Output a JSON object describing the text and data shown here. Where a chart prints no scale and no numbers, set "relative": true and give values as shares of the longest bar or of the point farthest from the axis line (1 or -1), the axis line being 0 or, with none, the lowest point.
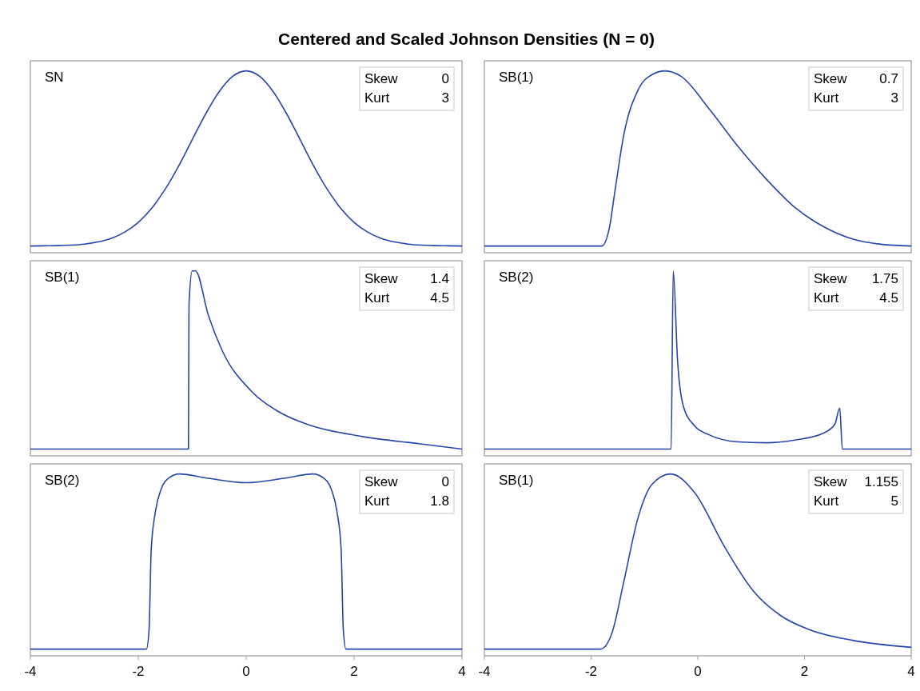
{
  "chart_data": [
    {
      "type": "line",
      "title": "Centered and Scaled Johnson Densities (N = 0)",
      "relative": true,
      "xlim": [
        -4,
        4
      ],
      "tick_labels": false,
      "annotations": [
        "SN",
        "Skew",
        "0",
        "Kurt",
        "3"
      ],
      "series": [
        {
          "color": "#2546a8",
          "x": [
            -4,
            -3.75,
            -3.5,
            -3.25,
            -3,
            -2.75,
            -2.5,
            -2.25,
            -2,
            -1.75,
            -1.5,
            -1.25,
            -1,
            -0.75,
            -0.5,
            -0.25,
            0,
            0.25,
            0.5,
            0.75,
            1,
            1.25,
            1.5,
            1.75,
            2,
            2.25,
            2.5,
            2.75,
            3,
            3.25,
            3.5,
            3.75,
            4
          ],
          "values": [
            0,
            0.001,
            0.002,
            0.005,
            0.011,
            0.023,
            0.044,
            0.08,
            0.135,
            0.216,
            0.325,
            0.458,
            0.607,
            0.755,
            0.882,
            0.969,
            1,
            0.969,
            0.882,
            0.755,
            0.607,
            0.458,
            0.325,
            0.216,
            0.135,
            0.08,
            0.044,
            0.023,
            0.011,
            0.005,
            0.002,
            0.001,
            0
          ]
        }
      ]
    },
    {
      "type": "line",
      "relative": true,
      "xlim": [
        -4,
        4
      ],
      "tick_labels": false,
      "annotations": [
        "SB(1)",
        "Skew",
        "0.7",
        "Kurt",
        "3"
      ],
      "series": [
        {
          "color": "#2546a8",
          "x": [
            -4,
            -1.8,
            -1.66,
            -1.55,
            -1.39,
            -1.12,
            -0.85,
            -0.61,
            -0.32,
            0.22,
            0.75,
            1.29,
            1.82,
            2.36,
            2.9,
            3.43,
            4
          ],
          "values": [
            0,
            0,
            0.1,
            0.32,
            0.63,
            0.89,
            0.98,
            1,
            0.97,
            0.78,
            0.57,
            0.38,
            0.22,
            0.11,
            0.04,
            0.01,
            0
          ]
        }
      ]
    },
    {
      "type": "line",
      "relative": true,
      "xlim": [
        -4,
        4
      ],
      "tick_labels": false,
      "annotations": [
        "SB(1)",
        "Skew",
        "1.4",
        "Kurt",
        "4.5"
      ],
      "series": [
        {
          "color": "#2546a8",
          "x": [
            -4,
            -1.07,
            -1.06,
            -1,
            -0.94,
            -0.7,
            -0.44,
            0.08,
            0.6,
            1.12,
            2.16,
            3.2,
            4
          ],
          "values": [
            0,
            0,
            0.81,
            1,
            1,
            0.75,
            0.55,
            0.33,
            0.21,
            0.14,
            0.07,
            0.03,
            0
          ]
        }
      ]
    },
    {
      "type": "line",
      "relative": true,
      "xlim": [
        -4,
        4
      ],
      "tick_labels": false,
      "annotations": [
        "SB(2)",
        "Skew",
        "1.75",
        "Kurt",
        "4.5"
      ],
      "series": [
        {
          "color": "#2546a8",
          "x": [
            -4,
            -0.5,
            -0.46,
            -0.38,
            -0.27,
            -0.06,
            0.21,
            0.75,
            1.28,
            1.82,
            2.36,
            2.57,
            2.66,
            2.71,
            4
          ],
          "values": [
            0,
            0,
            1,
            0.5,
            0.24,
            0.13,
            0.08,
            0.04,
            0.035,
            0.05,
            0.09,
            0.14,
            0.23,
            0,
            0
          ]
        }
      ]
    },
    {
      "type": "line",
      "relative": true,
      "xlim": [
        -4,
        4
      ],
      "xticks": [
        -4,
        -2,
        0,
        2,
        4
      ],
      "tick_labels": "x",
      "annotations": [
        "SB(2)",
        "Skew",
        "0",
        "Kurt",
        "1.8"
      ],
      "series": [
        {
          "color": "#2546a8",
          "x": [
            -4,
            -1.85,
            -1.8,
            -1.76,
            -1.68,
            -1.58,
            -1.42,
            -1.24,
            -0.7,
            0,
            0.7,
            1.24,
            1.42,
            1.58,
            1.68,
            1.76,
            1.8,
            1.85,
            4
          ],
          "values": [
            0,
            0,
            0.11,
            0.57,
            0.79,
            0.91,
            0.98,
            1,
            0.975,
            0.95,
            0.975,
            1,
            0.98,
            0.91,
            0.79,
            0.57,
            0.11,
            0,
            0
          ]
        }
      ]
    },
    {
      "type": "line",
      "relative": true,
      "xlim": [
        -4,
        4
      ],
      "xticks": [
        -4,
        -2,
        0,
        2,
        4
      ],
      "tick_labels": "x",
      "annotations": [
        "SB(1)",
        "Skew",
        "1.155",
        "Kurt",
        "5"
      ],
      "series": [
        {
          "color": "#2546a8",
          "x": [
            -4,
            -1.82,
            -1.6,
            -1.39,
            -1.12,
            -0.86,
            -0.51,
            -0.05,
            0.49,
            1.02,
            1.56,
            2.1,
            2.9,
            4
          ],
          "values": [
            0,
            0,
            0.1,
            0.38,
            0.75,
            0.94,
            1,
            0.89,
            0.59,
            0.34,
            0.19,
            0.11,
            0.05,
            0.01
          ]
        }
      ]
    }
  ]
}
